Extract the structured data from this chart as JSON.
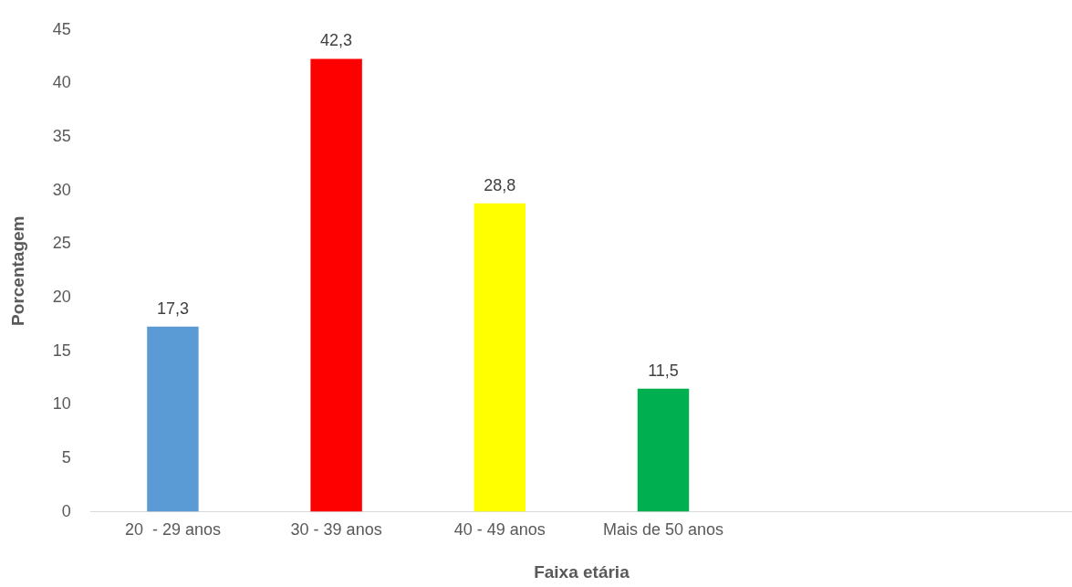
{
  "chart_data": {
    "type": "bar",
    "xlabel": "Faixa etária",
    "ylabel": "Porcentagem",
    "categories": [
      "20  - 29 anos",
      "30 - 39 anos",
      "40 - 49 anos",
      "Mais de 50 anos",
      null,
      null
    ],
    "values": [
      17.3,
      42.3,
      28.8,
      11.5,
      null,
      null
    ],
    "colors": [
      "#5b9bd5",
      "#ff0000",
      "#ffff00",
      "#00b050",
      "#5b9bd5",
      "#5b9bd5"
    ],
    "value_labels": [
      "17,3",
      "42,3",
      "28,8",
      "11,5",
      null,
      null
    ],
    "ylim": [
      0,
      45
    ],
    "yticks": [
      0,
      5,
      10,
      15,
      20,
      25,
      30,
      35,
      40,
      45
    ],
    "grid": false,
    "legend": false
  }
}
